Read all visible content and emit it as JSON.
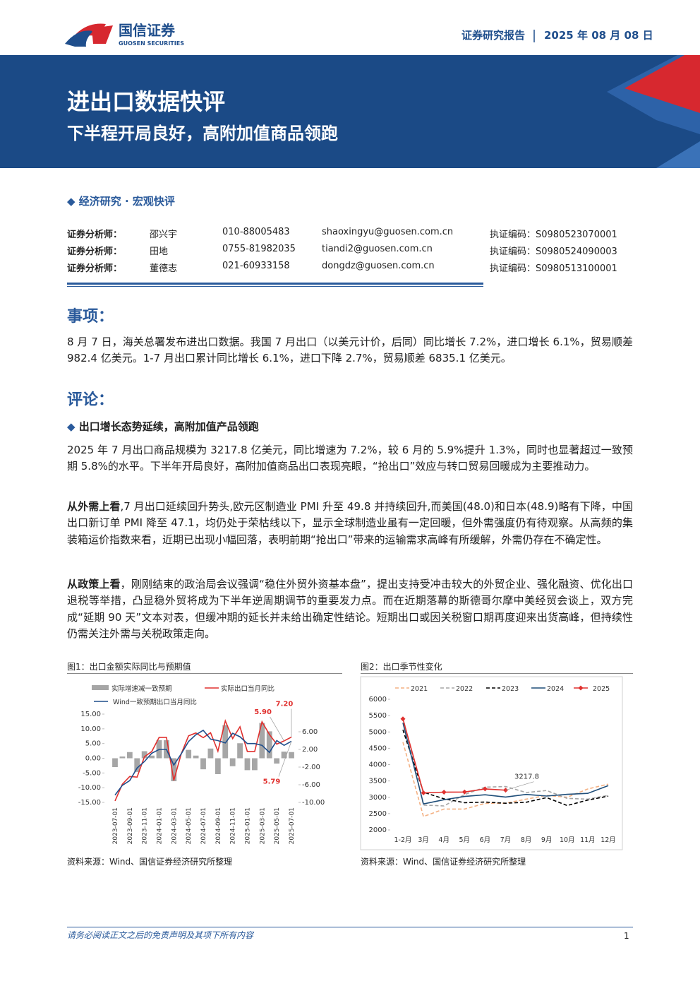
{
  "header": {
    "company": "国信证券",
    "company_en": "GUOSEN SECURITIES",
    "report_type": "证券研究报告",
    "date": "2025 年 08 月 08 日"
  },
  "banner": {
    "title": "进出口数据快评",
    "subtitle": "下半程开局良好，高附加值商品领跑"
  },
  "category": "经济研究 · 宏观快评",
  "analysts": [
    {
      "role": "证券分析师：",
      "name": "邵兴宇",
      "phone": "010-88005483",
      "email": "shaoxingyu@guosen.com.cn",
      "license": "执证编码：S0980523070001"
    },
    {
      "role": "证券分析师：",
      "name": "田地",
      "phone": "0755-81982035",
      "email": "tiandi2@guosen.com.cn",
      "license": "执证编码：S0980524090003"
    },
    {
      "role": "证券分析师：",
      "name": "董德志",
      "phone": "021-60933158",
      "email": "dongdz@guosen.com.cn",
      "license": "执证编码：S0980513100001"
    }
  ],
  "sections": [
    {
      "heading": "事项：",
      "paragraphs": [
        {
          "text": "8 月 7 日，海关总署发布进出口数据。我国 7 月出口（以美元计价，后同）同比增长 7.2%，进口增长 6.1%，贸易顺差 982.4 亿美元。1-7 月出口累计同比增长 6.1%，进口下降 2.7%，贸易顺差 6835.1 亿美元。"
        }
      ]
    },
    {
      "heading": "评论：",
      "subheading": "出口增长态势延续，高附加值产品领跑",
      "paragraphs": [
        {
          "text": "2025 年 7 月出口商品规模为 3217.8 亿美元，同比增速为 7.2%，较 6 月的 5.9%提升 1.3%，同时也显著超过一致预期 5.8%的水平。下半年开局良好，高附加值商品出口表现亮眼，“抢出口”效应与转口贸易回暖成为主要推动力。"
        },
        {
          "lead": "从外需上看",
          "text": ",7 月出口延续回升势头,欧元区制造业 PMI 升至 49.8 并持续回升,而美国(48.0)和日本(48.9)略有下降，中国出口新订单 PMI 降至 47.1，均仍处于荣枯线以下，显示全球制造业虽有一定回暖，但外需强度仍有待观察。从高频的集装箱运价指数来看，近期已出现小幅回落，表明前期“抢出口”带来的运输需求高峰有所缓解，外需仍存在不确定性。"
        },
        {
          "lead": "从政策上看",
          "text": "，刚刚结束的政治局会议强调“稳住外贸外资基本盘”，提出支持受冲击较大的外贸企业、强化融资、优化出口退税等举措，凸显稳外贸将成为下半年逆周期调节的重要发力点。而在近期落幕的斯德哥尔摩中美经贸会谈上，双方完成“延期 90 天”文本对表，但缓冲期的延长并未给出确定性结论。短期出口或因关税窗口期再度迎来出货高峰，但持续性仍需关注外需与关税政策走向。"
        }
      ]
    }
  ],
  "figures": [
    {
      "caption": "图1：出口金额实际同比与预期值",
      "source": "资料来源：Wind、国信证券经济研究所整理"
    },
    {
      "caption": "图2：出口季节性变化",
      "source": "资料来源：Wind、国信证券经济研究所整理"
    }
  ],
  "chart_data": [
    {
      "type": "combo",
      "categories": [
        "2023-07-01",
        null,
        "2023-09-01",
        null,
        "2023-11-01",
        null,
        "2024-01-01",
        null,
        "2024-03-01",
        null,
        "2024-05-01",
        null,
        "2024-07-01",
        null,
        "2024-09-01",
        null,
        "2024-11-01",
        null,
        "2025-01-01",
        null,
        "2025-03-01",
        null,
        "2025-05-01",
        null,
        "2025-07-01"
      ],
      "series": [
        {
          "name": "实际增速减一致预期",
          "type": "bar",
          "axis": "y2",
          "color": "#a6a6a6",
          "values": [
            -2.0,
            0.4,
            1.4,
            -3.1,
            1.6,
            0.6,
            4.1,
            4.1,
            -5.2,
            0.0,
            1.9,
            0.6,
            -2.5,
            2.2,
            -3.6,
            7.5,
            -1.8,
            3.4,
            -2.7,
            -2.7,
            8.0,
            6.1,
            -1.2,
            1.5,
            1.4
          ]
        },
        {
          "name": "实际出口当月同比",
          "type": "line",
          "color": "#e0302e",
          "values": [
            -14.5,
            -8.8,
            -6.2,
            -6.4,
            0.5,
            2.3,
            7.1,
            7.1,
            -7.5,
            1.5,
            7.6,
            8.6,
            7.0,
            8.7,
            2.4,
            12.7,
            6.7,
            10.7,
            2.3,
            2.3,
            12.4,
            8.1,
            4.8,
            5.9,
            7.2
          ],
          "value_labels": [
            null,
            null,
            null,
            null,
            null,
            null,
            null,
            null,
            null,
            null,
            null,
            null,
            null,
            null,
            null,
            null,
            null,
            null,
            null,
            null,
            null,
            null,
            null,
            "5.90",
            "7.20"
          ]
        },
        {
          "name": "Wind一致预期出口当月同比",
          "type": "line",
          "color": "#1f4e8c",
          "values": [
            -12.5,
            -9.2,
            -7.6,
            -3.3,
            -1.1,
            1.7,
            3.0,
            3.0,
            -2.3,
            1.5,
            5.7,
            8.0,
            9.5,
            6.5,
            6.0,
            5.2,
            8.5,
            7.3,
            5.0,
            5.0,
            4.4,
            2.0,
            6.0,
            4.4,
            5.79
          ],
          "value_labels": [
            null,
            null,
            null,
            null,
            null,
            null,
            null,
            null,
            null,
            null,
            null,
            null,
            null,
            null,
            null,
            null,
            null,
            null,
            null,
            null,
            null,
            null,
            null,
            null,
            "5.79"
          ]
        }
      ],
      "ylim": [
        -15,
        15
      ],
      "yticks": [
        {
          "value": -15,
          "label": "-15.00"
        },
        {
          "value": -10,
          "label": "-10.00"
        },
        {
          "value": -5,
          "label": "-5.00"
        },
        {
          "value": 0,
          "label": "0.00"
        },
        {
          "value": 5,
          "label": "5.00"
        },
        {
          "value": 10,
          "label": "10.00"
        },
        {
          "value": 15,
          "label": "15.00"
        }
      ],
      "y2lim": [
        -10,
        10
      ],
      "y2ticks": [
        {
          "value": -10,
          "label": "-10.00"
        },
        {
          "value": -6,
          "label": "-6.00"
        },
        {
          "value": -2,
          "label": "-2.00"
        },
        {
          "value": 2,
          "label": "2.00"
        },
        {
          "value": 6,
          "label": "6.00"
        }
      ]
    },
    {
      "type": "line",
      "categories": [
        "1-2月",
        "3月",
        "4月",
        "5月",
        "6月",
        "7月",
        "8月",
        "9月",
        "10月",
        "11月",
        "12月"
      ],
      "series": [
        {
          "name": "2021",
          "color": "#f4b183",
          "style": "dashed",
          "values": [
            4687,
            2410,
            2639,
            2639,
            2814,
            2820,
            2943,
            3057,
            3001,
            3254,
            3404
          ]
        },
        {
          "name": "2022",
          "color": "#a6a6a6",
          "style": "dashed",
          "values": [
            5448,
            2760,
            2736,
            3083,
            3310,
            3330,
            3146,
            3206,
            2967,
            2943,
            3060
          ]
        },
        {
          "name": "2023",
          "color": "#000000",
          "style": "dashed",
          "values": [
            5063,
            3155,
            2954,
            2835,
            2853,
            2817,
            2848,
            2991,
            2748,
            2914,
            3036
          ]
        },
        {
          "name": "2024",
          "color": "#1f4e79",
          "style": "solid",
          "values": [
            5280,
            2796,
            2925,
            3024,
            3077,
            3007,
            3087,
            3037,
            3090,
            3121,
            3357
          ]
        },
        {
          "name": "2025",
          "color": "#e0302e",
          "style": "solid",
          "marker": "diamond",
          "values": [
            5399,
            3136,
            3156,
            3162,
            3256,
            3217.8,
            null,
            null,
            null,
            null,
            null
          ],
          "value_labels": [
            null,
            null,
            null,
            null,
            null,
            "3217.8",
            null,
            null,
            null,
            null,
            null
          ]
        }
      ],
      "ylim": [
        2000,
        6000
      ],
      "yticks": [
        2000,
        2500,
        3000,
        3500,
        4000,
        4500,
        5000,
        5500,
        6000
      ]
    }
  ],
  "footer": {
    "disclaimer": "请务必阅读正文之后的免责声明及其项下所有内容",
    "page": 1
  }
}
